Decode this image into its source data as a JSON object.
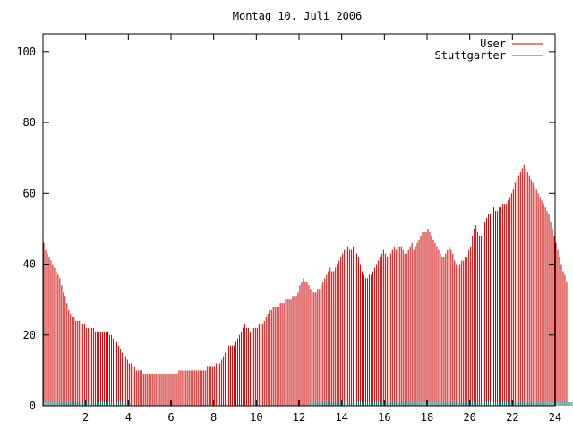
{
  "chart_data": {
    "type": "bar",
    "title": "Montag 10. Juli 2006",
    "xlabel": "",
    "ylabel": "",
    "xlim": [
      0,
      24
    ],
    "ylim": [
      0,
      105
    ],
    "xticks": [
      2,
      4,
      6,
      8,
      10,
      12,
      14,
      16,
      18,
      20,
      22,
      24
    ],
    "yticks": [
      0,
      20,
      40,
      60,
      80,
      100
    ],
    "grid": false,
    "legend_position": "top-right",
    "bin_minutes": 5,
    "series": [
      {
        "name": "User",
        "color": "#cc0000",
        "values": [
          46,
          44,
          43,
          42,
          41,
          40,
          39,
          38,
          37,
          36,
          34,
          32,
          31,
          29,
          27,
          26,
          25,
          25,
          24,
          24,
          24,
          23,
          23,
          23,
          22,
          22,
          22,
          22,
          22,
          21,
          21,
          21,
          21,
          21,
          21,
          21,
          21,
          20,
          20,
          19,
          19,
          18,
          17,
          16,
          15,
          14,
          14,
          13,
          12,
          12,
          11,
          11,
          10,
          10,
          10,
          10,
          9,
          9,
          9,
          9,
          9,
          9,
          9,
          9,
          9,
          9,
          9,
          9,
          9,
          9,
          9,
          9,
          9,
          9,
          9,
          9,
          10,
          10,
          10,
          10,
          10,
          10,
          10,
          10,
          10,
          10,
          10,
          10,
          10,
          10,
          10,
          10,
          11,
          11,
          11,
          11,
          11,
          12,
          12,
          12,
          13,
          14,
          15,
          16,
          17,
          17,
          17,
          17,
          18,
          19,
          20,
          21,
          22,
          23,
          22,
          22,
          21,
          21,
          22,
          22,
          22,
          23,
          23,
          23,
          24,
          25,
          26,
          27,
          27,
          28,
          28,
          28,
          28,
          29,
          29,
          29,
          30,
          30,
          30,
          30,
          31,
          31,
          31,
          32,
          34,
          35,
          36,
          35,
          35,
          34,
          33,
          32,
          32,
          32,
          33,
          33,
          34,
          35,
          36,
          37,
          38,
          39,
          38,
          38,
          39,
          40,
          41,
          42,
          43,
          44,
          45,
          45,
          44,
          44,
          45,
          45,
          43,
          42,
          40,
          38,
          37,
          36,
          36,
          37,
          37,
          38,
          39,
          40,
          41,
          42,
          43,
          44,
          43,
          42,
          42,
          43,
          44,
          45,
          44,
          45,
          45,
          45,
          44,
          43,
          43,
          44,
          45,
          46,
          44,
          45,
          46,
          47,
          48,
          49,
          49,
          49,
          50,
          49,
          48,
          47,
          46,
          45,
          44,
          43,
          42,
          42,
          43,
          44,
          45,
          44,
          43,
          41,
          40,
          39,
          40,
          41,
          41,
          42,
          42,
          44,
          45,
          48,
          50,
          51,
          49,
          48,
          48,
          51,
          52,
          53,
          54,
          54,
          55,
          56,
          55,
          55,
          56,
          56,
          57,
          57,
          57,
          58,
          59,
          60,
          61,
          63,
          64,
          65,
          66,
          67,
          68,
          67,
          66,
          65,
          64,
          63,
          62,
          61,
          60,
          59,
          58,
          57,
          56,
          55,
          54,
          52,
          50,
          48,
          46,
          44,
          42,
          40,
          38,
          37,
          35
        ]
      },
      {
        "name": "Stuttgarter",
        "color": "#008080",
        "values": [
          1,
          1,
          1,
          1,
          1,
          1,
          1,
          1,
          1,
          1,
          1,
          1,
          1,
          1,
          1,
          1,
          1,
          1,
          1,
          1,
          1,
          1,
          1,
          1,
          1,
          1,
          1,
          1,
          1,
          1,
          1,
          1,
          1,
          1,
          1,
          1,
          1,
          1,
          1,
          1,
          1,
          1,
          1,
          1,
          1,
          1,
          1,
          1,
          1,
          1,
          0,
          0,
          0,
          0,
          0,
          0,
          0,
          0,
          0,
          0,
          0,
          0,
          0,
          0,
          0,
          0,
          0,
          0,
          0,
          0,
          0,
          0,
          0,
          0,
          0,
          0,
          0,
          0,
          0,
          0,
          0,
          0,
          0,
          0,
          0,
          0,
          0,
          0,
          0,
          0,
          0,
          0,
          0,
          0,
          0,
          0,
          0,
          0,
          0,
          0,
          0,
          0,
          0,
          0,
          0,
          0,
          0,
          0,
          0,
          0,
          0,
          0,
          0,
          0,
          0,
          0,
          0,
          0,
          0,
          0,
          0,
          0,
          0,
          0,
          0,
          0,
          0,
          0,
          0,
          0,
          0,
          0,
          0,
          0,
          0,
          0,
          0,
          0,
          0,
          0,
          0,
          0,
          0,
          0,
          0,
          0,
          0,
          0,
          0,
          0,
          1,
          1,
          1,
          1,
          1,
          1,
          1,
          1,
          1,
          1,
          1,
          1,
          1,
          1,
          1,
          1,
          1,
          1,
          1,
          1,
          1,
          1,
          1,
          1,
          1,
          1,
          1,
          1,
          1,
          1,
          1,
          1,
          1,
          1,
          1,
          1,
          1,
          1,
          1,
          1,
          1,
          1,
          1,
          1,
          1,
          1,
          1,
          1,
          1,
          1,
          1,
          1,
          1,
          1,
          1,
          1,
          1,
          1,
          1,
          1,
          1,
          1,
          1,
          1,
          1,
          1,
          1,
          1,
          1,
          1,
          1,
          1,
          1,
          1,
          1,
          1,
          1,
          1,
          1,
          1,
          1,
          1,
          1,
          1,
          1,
          1,
          1,
          1,
          1,
          1,
          1,
          1,
          1,
          1,
          1,
          1,
          1,
          1,
          1,
          1,
          1,
          1,
          1,
          1,
          1,
          1,
          1,
          1,
          1,
          1,
          1,
          1,
          1,
          1,
          1,
          1,
          1,
          1,
          1,
          1,
          1,
          1,
          1,
          1,
          1,
          1,
          1,
          1,
          1,
          1,
          1,
          1,
          1,
          1,
          1,
          1,
          1,
          1,
          1,
          1,
          1,
          1,
          1,
          1,
          1,
          1,
          1,
          1,
          1,
          1,
          1,
          1,
          1,
          1,
          1,
          1,
          1,
          1,
          1,
          1,
          1,
          1,
          1
        ]
      }
    ]
  }
}
